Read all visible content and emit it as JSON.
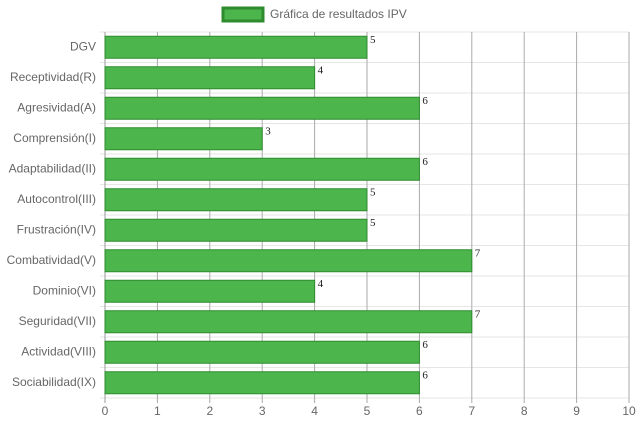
{
  "chart_data": {
    "type": "bar",
    "horizontal": true,
    "categories": [
      "DGV",
      "Receptividad(R)",
      "Agresividad(A)",
      "Comprensión(I)",
      "Adaptabilidad(II)",
      "Autocontrol(III)",
      "Frustración(IV)",
      "Combatividad(V)",
      "Dominio(VI)",
      "Seguridad(VII)",
      "Actividad(VIII)",
      "Sociabilidad(IX)"
    ],
    "series": [
      {
        "name": "Gráfica de resultados IPV",
        "color": "#4cb64c",
        "border_color": "#2e8b2e",
        "values": [
          5,
          4,
          6,
          3,
          6,
          5,
          5,
          7,
          4,
          7,
          6,
          6
        ]
      }
    ],
    "xlim": [
      0,
      10
    ],
    "xticks": [
      0,
      1,
      2,
      3,
      4,
      5,
      6,
      7,
      8,
      9,
      10
    ],
    "grid": true,
    "legend": "top"
  }
}
